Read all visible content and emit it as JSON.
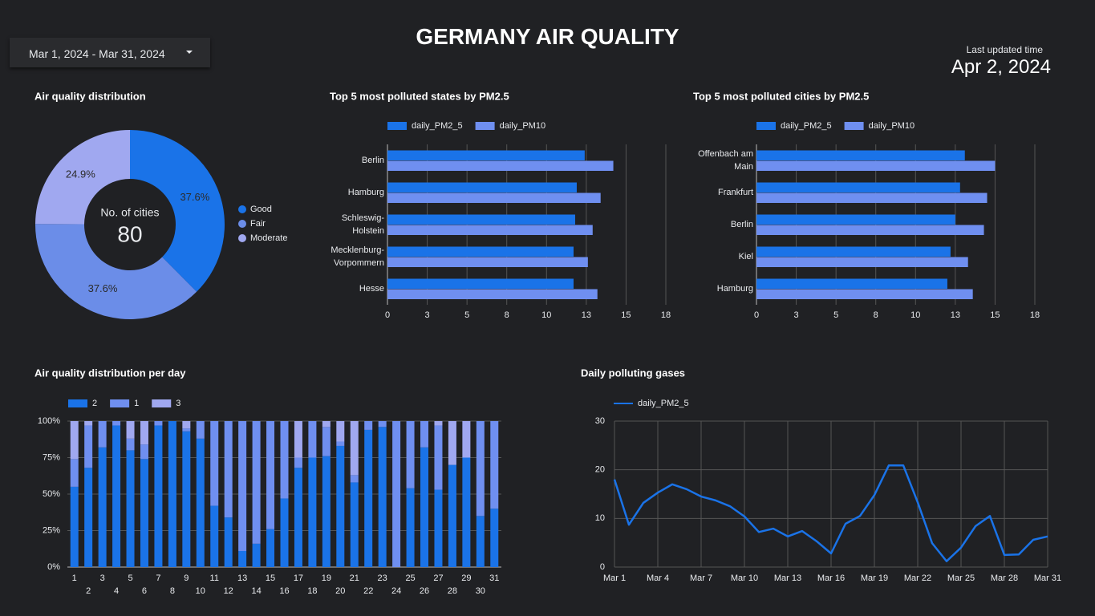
{
  "header": {
    "title": "GERMANY AIR QUALITY",
    "date_range": "Mar 1, 2024 - Mar 31, 2024",
    "updated_label": "Last updated time",
    "updated_date": "Apr 2, 2024"
  },
  "chart_data": [
    {
      "type": "pie",
      "title": "Air quality distribution",
      "center_label": "No. of cities",
      "center_value": 80,
      "categories": [
        "Good",
        "Fair",
        "Moderate"
      ],
      "values": [
        37.6,
        37.6,
        24.9
      ],
      "value_labels": [
        "37.6%",
        "37.6%",
        "24.9%"
      ],
      "colors": [
        "#1a73e8",
        "#6b8de8",
        "#a0a8f0"
      ],
      "legend": "right"
    },
    {
      "type": "hbar",
      "title": "Top 5 most polluted states by PM2.5",
      "categories": [
        "Berlin",
        "Hamburg",
        "Schleswig-Holstein",
        "Mecklenburg-Vorpommern",
        "Hesse"
      ],
      "series": [
        {
          "name": "daily_PM2_5",
          "color": "#1a73e8",
          "values": [
            12.4,
            11.9,
            11.8,
            11.7,
            11.7
          ]
        },
        {
          "name": "daily_PM10",
          "color": "#6f8ff0",
          "values": [
            14.2,
            13.4,
            12.9,
            12.6,
            13.2
          ]
        }
      ],
      "xlim": [
        0,
        17.5
      ],
      "xticks": [
        0,
        {
          "value": 2.5,
          "label": "3"
        },
        5,
        {
          "value": 7.5,
          "label": "8"
        },
        10,
        {
          "value": 12.5,
          "label": "13"
        },
        15,
        {
          "value": 17.5,
          "label": "18"
        }
      ],
      "grid": true,
      "legend": "top"
    },
    {
      "type": "hbar",
      "title": "Top 5 most polluted cities by PM2.5",
      "categories": [
        "Offenbach am Main",
        "Frankfurt",
        "Berlin",
        "Kiel",
        "Hamburg"
      ],
      "series": [
        {
          "name": "daily_PM2_5",
          "color": "#1a73e8",
          "values": [
            13.1,
            12.8,
            12.5,
            12.2,
            12.0
          ]
        },
        {
          "name": "daily_PM10",
          "color": "#6f8ff0",
          "values": [
            15.0,
            14.5,
            14.3,
            13.3,
            13.6
          ]
        }
      ],
      "xlim": [
        0,
        17.5
      ],
      "xticks": [
        0,
        {
          "value": 2.5,
          "label": "3"
        },
        5,
        {
          "value": 7.5,
          "label": "8"
        },
        10,
        {
          "value": 12.5,
          "label": "13"
        },
        15,
        {
          "value": 17.5,
          "label": "18"
        }
      ],
      "grid": true,
      "legend": "top"
    },
    {
      "type": "stacked_bar",
      "stacking": "percent",
      "title": "Air quality distribution per day",
      "categories": [
        "1",
        "2",
        "3",
        "4",
        "5",
        "6",
        "7",
        "8",
        "9",
        "10",
        "11",
        "12",
        "13",
        "14",
        "15",
        "16",
        "17",
        "18",
        "19",
        "20",
        "21",
        "22",
        "23",
        "24",
        "25",
        "26",
        "27",
        "28",
        "29",
        "30",
        "31"
      ],
      "series": [
        {
          "name": "2",
          "color": "#1a73e8",
          "values": [
            55,
            68,
            82,
            97,
            80,
            74,
            97,
            100,
            93,
            88,
            42,
            34,
            11,
            16,
            26,
            47,
            68,
            75,
            76,
            83,
            58,
            94,
            96,
            0,
            54,
            82,
            53,
            70,
            75,
            35,
            40
          ]
        },
        {
          "name": "1",
          "color": "#6f8ff0",
          "values": [
            19,
            29,
            18,
            3,
            8,
            10,
            3,
            0,
            2,
            12,
            58,
            66,
            89,
            84,
            74,
            53,
            7,
            25,
            20,
            3,
            5,
            6,
            4,
            100,
            46,
            18,
            44,
            0,
            0,
            65,
            60
          ]
        },
        {
          "name": "3",
          "color": "#a0a8f0",
          "values": [
            26,
            3,
            0,
            0,
            12,
            16,
            0,
            0,
            5,
            0,
            0,
            0,
            0,
            0,
            0,
            0,
            25,
            0,
            4,
            14,
            37,
            0,
            0,
            0,
            0,
            0,
            3,
            30,
            25,
            0,
            0
          ]
        }
      ],
      "ylim": [
        0,
        100
      ],
      "yticks": [
        {
          "value": 0,
          "label": "0%"
        },
        {
          "value": 25,
          "label": "25%"
        },
        {
          "value": 50,
          "label": "50%"
        },
        {
          "value": 75,
          "label": "75%"
        },
        {
          "value": 100,
          "label": "100%"
        }
      ],
      "grid": true,
      "legend": "top"
    },
    {
      "type": "line",
      "title": "Daily polluting gases",
      "categories": [
        "Mar 1",
        null,
        null,
        "Mar 4",
        null,
        null,
        "Mar 7",
        null,
        null,
        "Mar 10",
        null,
        null,
        "Mar 13",
        null,
        null,
        "Mar 16",
        null,
        null,
        "Mar 19",
        null,
        null,
        "Mar 22",
        null,
        null,
        "Mar 25",
        null,
        null,
        "Mar 28",
        null,
        null,
        "Mar 31"
      ],
      "series": [
        {
          "name": "daily_PM2_5",
          "color": "#1a73e8",
          "values": [
            18,
            8.7,
            13.2,
            15.3,
            17,
            16,
            14.5,
            13.7,
            12.5,
            10.4,
            7.2,
            7.9,
            6.3,
            7.4,
            5.3,
            2.8,
            8.9,
            10.5,
            14.8,
            20.9,
            20.9,
            13.3,
            4.9,
            1.2,
            4,
            8.4,
            10.5,
            2.5,
            2.6,
            5.6,
            6.3
          ]
        }
      ],
      "ylim": [
        0,
        30
      ],
      "yticks": [
        0,
        10,
        20,
        30
      ],
      "grid": true,
      "legend": "top"
    }
  ]
}
